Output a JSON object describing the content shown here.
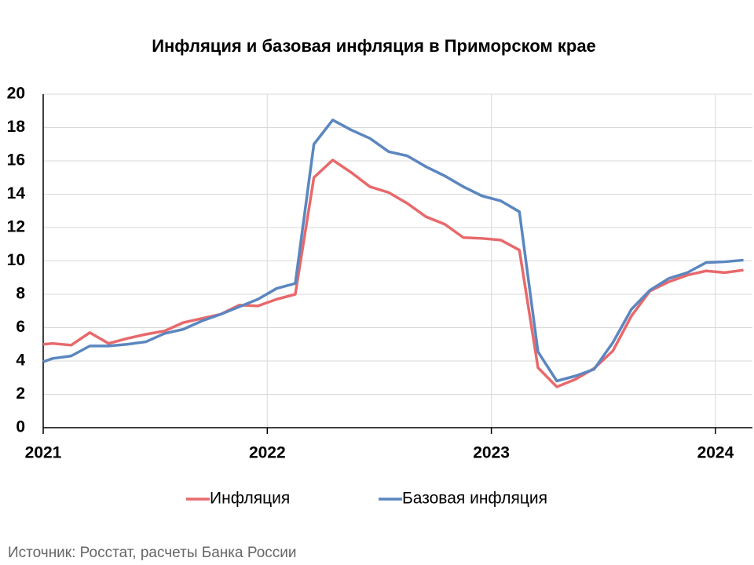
{
  "chart_data": {
    "type": "line",
    "title": "Инфляция и базовая инфляция в Приморском крае",
    "source": "Источник: Росстат, расчеты Банка России",
    "x": [
      2021,
      2021.042,
      2021.125,
      2021.208,
      2021.292,
      2021.375,
      2021.458,
      2021.542,
      2021.625,
      2021.708,
      2021.792,
      2021.875,
      2021.958,
      2022.042,
      2022.125,
      2022.208,
      2022.292,
      2022.375,
      2022.458,
      2022.542,
      2022.625,
      2022.708,
      2022.792,
      2022.875,
      2022.958,
      2023.042,
      2023.125,
      2023.208,
      2023.292,
      2023.375,
      2023.458,
      2023.542,
      2023.625,
      2023.708,
      2023.792,
      2023.875,
      2023.958,
      2024.042,
      2024.125
    ],
    "series": [
      {
        "name": "Инфляция",
        "color": "#e8696b",
        "values": [
          5.0,
          5.05,
          4.95,
          5.7,
          5.05,
          5.35,
          5.6,
          5.8,
          6.3,
          6.55,
          6.8,
          7.35,
          7.3,
          7.7,
          8.0,
          15.0,
          16.05,
          15.3,
          14.45,
          14.1,
          13.45,
          12.65,
          12.2,
          11.4,
          11.35,
          11.25,
          10.65,
          3.6,
          2.45,
          2.9,
          3.55,
          4.6,
          6.7,
          8.2,
          8.75,
          9.15,
          9.4,
          9.3,
          9.45
        ]
      },
      {
        "name": "Базовая инфляция",
        "color": "#5b86c0",
        "values": [
          3.95,
          4.15,
          4.3,
          4.9,
          4.9,
          5.0,
          5.15,
          5.65,
          5.9,
          6.4,
          6.8,
          7.25,
          7.7,
          8.35,
          8.65,
          17.0,
          18.45,
          17.85,
          17.35,
          16.55,
          16.3,
          15.65,
          15.1,
          14.45,
          13.9,
          13.6,
          12.95,
          4.55,
          2.8,
          3.1,
          3.5,
          5.1,
          7.1,
          8.25,
          8.95,
          9.3,
          9.9,
          9.95,
          10.05
        ]
      }
    ],
    "xlim": [
      2021,
      2024.165
    ],
    "xticks": [
      2021,
      2022,
      2023,
      2024
    ],
    "ylim": [
      0,
      20
    ],
    "yticks": [
      0,
      2,
      4,
      6,
      8,
      10,
      12,
      14,
      16,
      18,
      20
    ],
    "grid": true,
    "legend": "bottom"
  }
}
